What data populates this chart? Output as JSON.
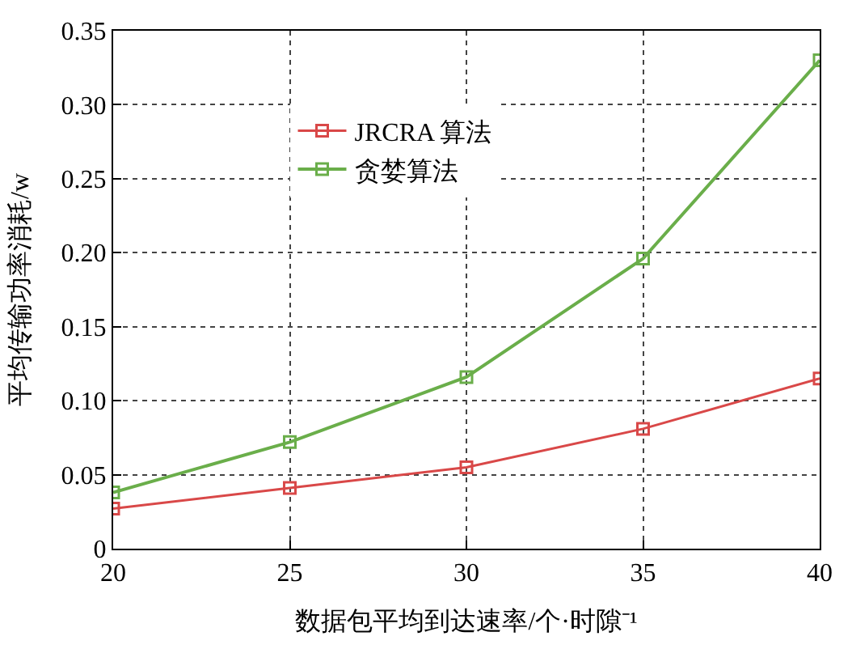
{
  "chart_data": {
    "type": "line",
    "xlabel": "数据包平均到达速率/个·时隙⁻¹",
    "ylabel": "平均传输功率消耗/w",
    "x": [
      20,
      25,
      30,
      35,
      40
    ],
    "series": [
      {
        "name": "JRCRA 算法",
        "color": "#d94848",
        "values": [
          0.027,
          0.041,
          0.055,
          0.081,
          0.115
        ]
      },
      {
        "name": "贪婪算法",
        "color": "#6aae4a",
        "values": [
          0.038,
          0.072,
          0.116,
          0.196,
          0.33
        ]
      }
    ],
    "xlim": [
      20,
      40
    ],
    "xticks": [
      20,
      25,
      30,
      35,
      40
    ],
    "ylim": [
      0,
      0.35
    ],
    "yticks": [
      0,
      {
        "value": 0.05,
        "label": "0.05"
      },
      {
        "value": 0.1,
        "label": "0.10"
      },
      {
        "value": 0.15,
        "label": "0.15"
      },
      {
        "value": 0.2,
        "label": "0.20"
      },
      {
        "value": 0.25,
        "label": "0.25"
      },
      {
        "value": 0.3,
        "label": "0.30"
      },
      {
        "value": 0.35,
        "label": "0.35"
      }
    ],
    "grid": true,
    "legend": "top left",
    "marker": "square",
    "line_style": "solid"
  }
}
